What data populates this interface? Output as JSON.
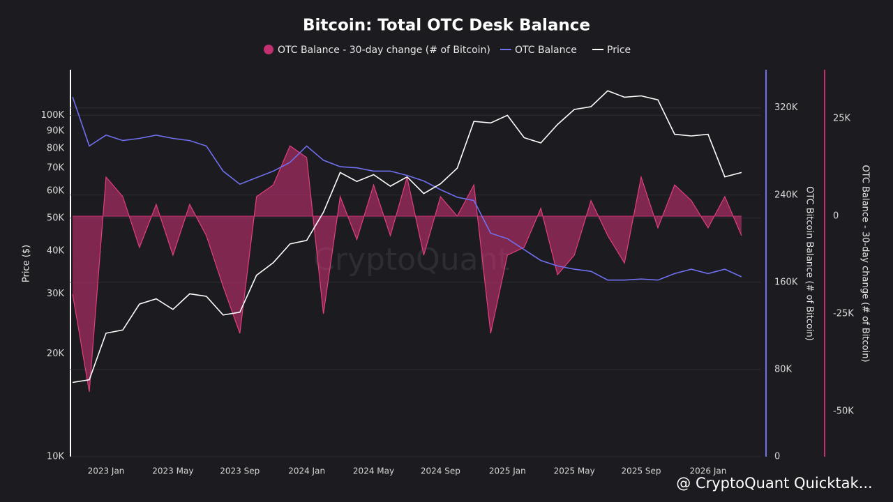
{
  "chart_data": {
    "type": "multi_axis_line_area",
    "title": "Bitcoin: Total OTC Desk Balance",
    "watermark": "CryptoQuant",
    "footer": "@ CryptoQuant Quicktak...",
    "x": [
      null,
      null,
      "2023 Jan",
      null,
      null,
      null,
      "2023 May",
      null,
      null,
      null,
      "2023 Sep",
      null,
      null,
      null,
      "2024 Jan",
      null,
      null,
      null,
      "2024 May",
      null,
      null,
      null,
      "2024 Sep",
      null,
      null,
      null,
      "2025 Jan",
      null,
      null,
      null,
      "2025 May",
      null,
      null,
      null,
      "2025 Sep",
      null,
      null,
      null,
      "2026 Jan",
      null,
      null
    ],
    "series": [
      {
        "name": "OTC Balance - 30-day change (# of Bitcoin)",
        "color": "#c2306f",
        "axis": "y3",
        "values": [
          -20000,
          -45000,
          10000,
          5000,
          -8000,
          3000,
          -10000,
          3000,
          -5000,
          -18000,
          -30000,
          5000,
          8000,
          18000,
          15000,
          -25000,
          5000,
          -6000,
          8000,
          -5000,
          10000,
          -10000,
          5000,
          0,
          8000,
          -30000,
          -10000,
          -8000,
          2000,
          -15000,
          -10000,
          4000,
          -5000,
          -12000,
          10000,
          -3000,
          8000,
          4000,
          -3000,
          5000,
          -5000
        ]
      },
      {
        "name": "OTC Balance",
        "color": "#7070f0",
        "axis": "y2",
        "values": [
          330000,
          285000,
          295000,
          290000,
          292000,
          295000,
          292000,
          290000,
          285000,
          262000,
          250000,
          256000,
          262000,
          270000,
          285000,
          272000,
          266000,
          265000,
          262000,
          262000,
          258000,
          253000,
          245000,
          238000,
          235000,
          205000,
          200000,
          190000,
          180000,
          175000,
          172000,
          170000,
          162000,
          162000,
          163000,
          162000,
          168000,
          172000,
          168000,
          172000,
          165000
        ]
      },
      {
        "name": "Price",
        "color": "#ffffff",
        "axis": "y",
        "values": [
          16500,
          16800,
          23000,
          23500,
          28000,
          29000,
          27000,
          30000,
          29500,
          26000,
          26500,
          34000,
          37000,
          42000,
          43000,
          52000,
          68000,
          64000,
          67000,
          62000,
          66000,
          59000,
          63000,
          70000,
          96000,
          95000,
          100000,
          86000,
          83000,
          94000,
          104000,
          106000,
          118000,
          113000,
          114000,
          111000,
          88000,
          87000,
          88000,
          66000,
          68000
        ]
      }
    ],
    "ylabel": "Price ($)",
    "y2label": "OTC Bitcoin Balance (# of Bitcoin)",
    "y3label": "OTC Balance - 30-day change (# of Bitcoin)",
    "ylog": true,
    "ylim": [
      10000,
      136000
    ],
    "yticks": [
      {
        "value": 10000,
        "label": "10K"
      },
      {
        "value": 20000,
        "label": "20K"
      },
      {
        "value": 30000,
        "label": "30K"
      },
      {
        "value": 40000,
        "label": "40K"
      },
      {
        "value": 50000,
        "label": "50K"
      },
      {
        "value": 60000,
        "label": "60K"
      },
      {
        "value": 70000,
        "label": "70K"
      },
      {
        "value": 80000,
        "label": "80K"
      },
      {
        "value": 90000,
        "label": "90K"
      },
      {
        "value": 100000,
        "label": "100K"
      }
    ],
    "y2lim": [
      0,
      355000
    ],
    "y2ticks": [
      0,
      {
        "value": 80000,
        "label": "80K"
      },
      {
        "value": 160000,
        "label": "160K"
      },
      {
        "value": 240000,
        "label": "240K"
      },
      {
        "value": 320000,
        "label": "320K"
      }
    ],
    "y3lim": [
      -61600,
      37500
    ],
    "y3ticks": [
      {
        "value": -50000,
        "label": "-50K"
      },
      {
        "value": -25000,
        "label": "-25K"
      },
      0,
      {
        "value": 25000,
        "label": "25K"
      }
    ],
    "grid": true
  }
}
